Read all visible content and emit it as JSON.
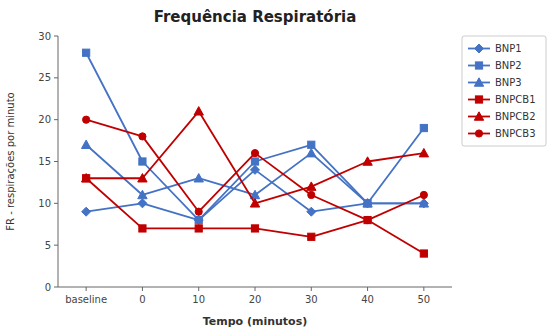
{
  "chart_data": {
    "type": "line",
    "title": "Frequência Respiratória",
    "x_label": "Tempo (minutos)",
    "y_label": "FR - respirações por minuto",
    "categories": [
      "baseline",
      "0",
      "10",
      "20",
      "30",
      "40",
      "50"
    ],
    "series": [
      {
        "name": "BNP1",
        "color": "#4472C4",
        "marker": "diamond",
        "values": [
          9,
          10,
          8,
          14,
          9,
          10,
          10
        ]
      },
      {
        "name": "BNP2",
        "color": "#4472C4",
        "marker": "square",
        "values": [
          28,
          15,
          8,
          15,
          17,
          10,
          19
        ]
      },
      {
        "name": "BNP3",
        "color": "#4472C4",
        "marker": "triangle",
        "values": [
          17,
          11,
          13,
          11,
          16,
          10,
          10
        ]
      },
      {
        "name": "BNPCB1",
        "color": "#C00000",
        "marker": "square",
        "values": [
          13,
          7,
          7,
          7,
          6,
          8,
          4
        ]
      },
      {
        "name": "BNPCB2",
        "color": "#C00000",
        "marker": "triangle",
        "values": [
          13,
          13,
          21,
          10,
          12,
          15,
          16
        ]
      },
      {
        "name": "BNPCB3",
        "color": "#C00000",
        "marker": "circle",
        "values": [
          20,
          18,
          9,
          16,
          11,
          8,
          11
        ]
      }
    ],
    "ylim": [
      0,
      30
    ],
    "yticks": [
      0,
      5,
      10,
      15,
      20,
      25,
      30
    ],
    "grid": false,
    "legend": "right"
  }
}
